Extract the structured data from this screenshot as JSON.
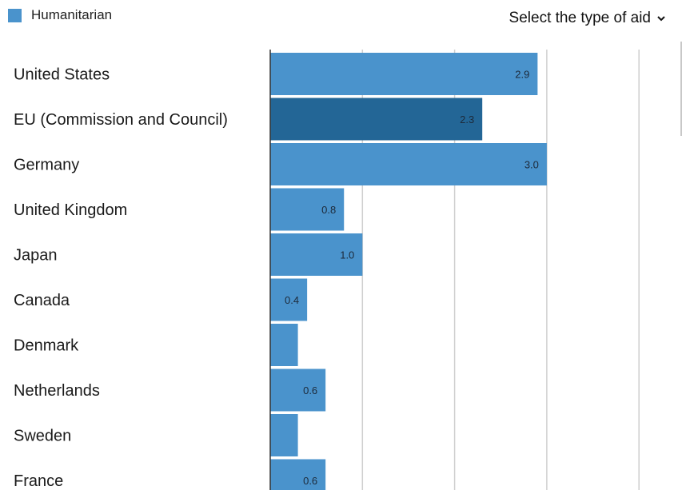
{
  "header": {
    "legend_label": "Humanitarian",
    "select_label": "Select the type of aid"
  },
  "colors": {
    "bar": "#4a93cc",
    "bar_highlight": "#236696",
    "gridline": "#cfcfcf",
    "axis": "#333333"
  },
  "icons": {
    "dropdown": "chevron-down-icon"
  },
  "chart_data": {
    "type": "bar",
    "orientation": "horizontal",
    "series": [
      {
        "name": "Humanitarian",
        "values": [
          2.9,
          2.3,
          3.0,
          0.8,
          1.0,
          0.4,
          0.3,
          0.6,
          0.3,
          0.6
        ]
      }
    ],
    "categories": [
      "United States",
      "EU (Commission and Council)",
      "Germany",
      "United Kingdom",
      "Japan",
      "Canada",
      "Denmark",
      "Netherlands",
      "Sweden",
      "France"
    ],
    "data_labels": [
      "2.9",
      "2.3",
      "3.0",
      "0.8",
      "1.0",
      "0.4",
      "",
      "0.6",
      "",
      "0.6"
    ],
    "highlighted_index": 1,
    "xlim": [
      0,
      4.3
    ],
    "grid": true,
    "legend_position": "top-left"
  }
}
